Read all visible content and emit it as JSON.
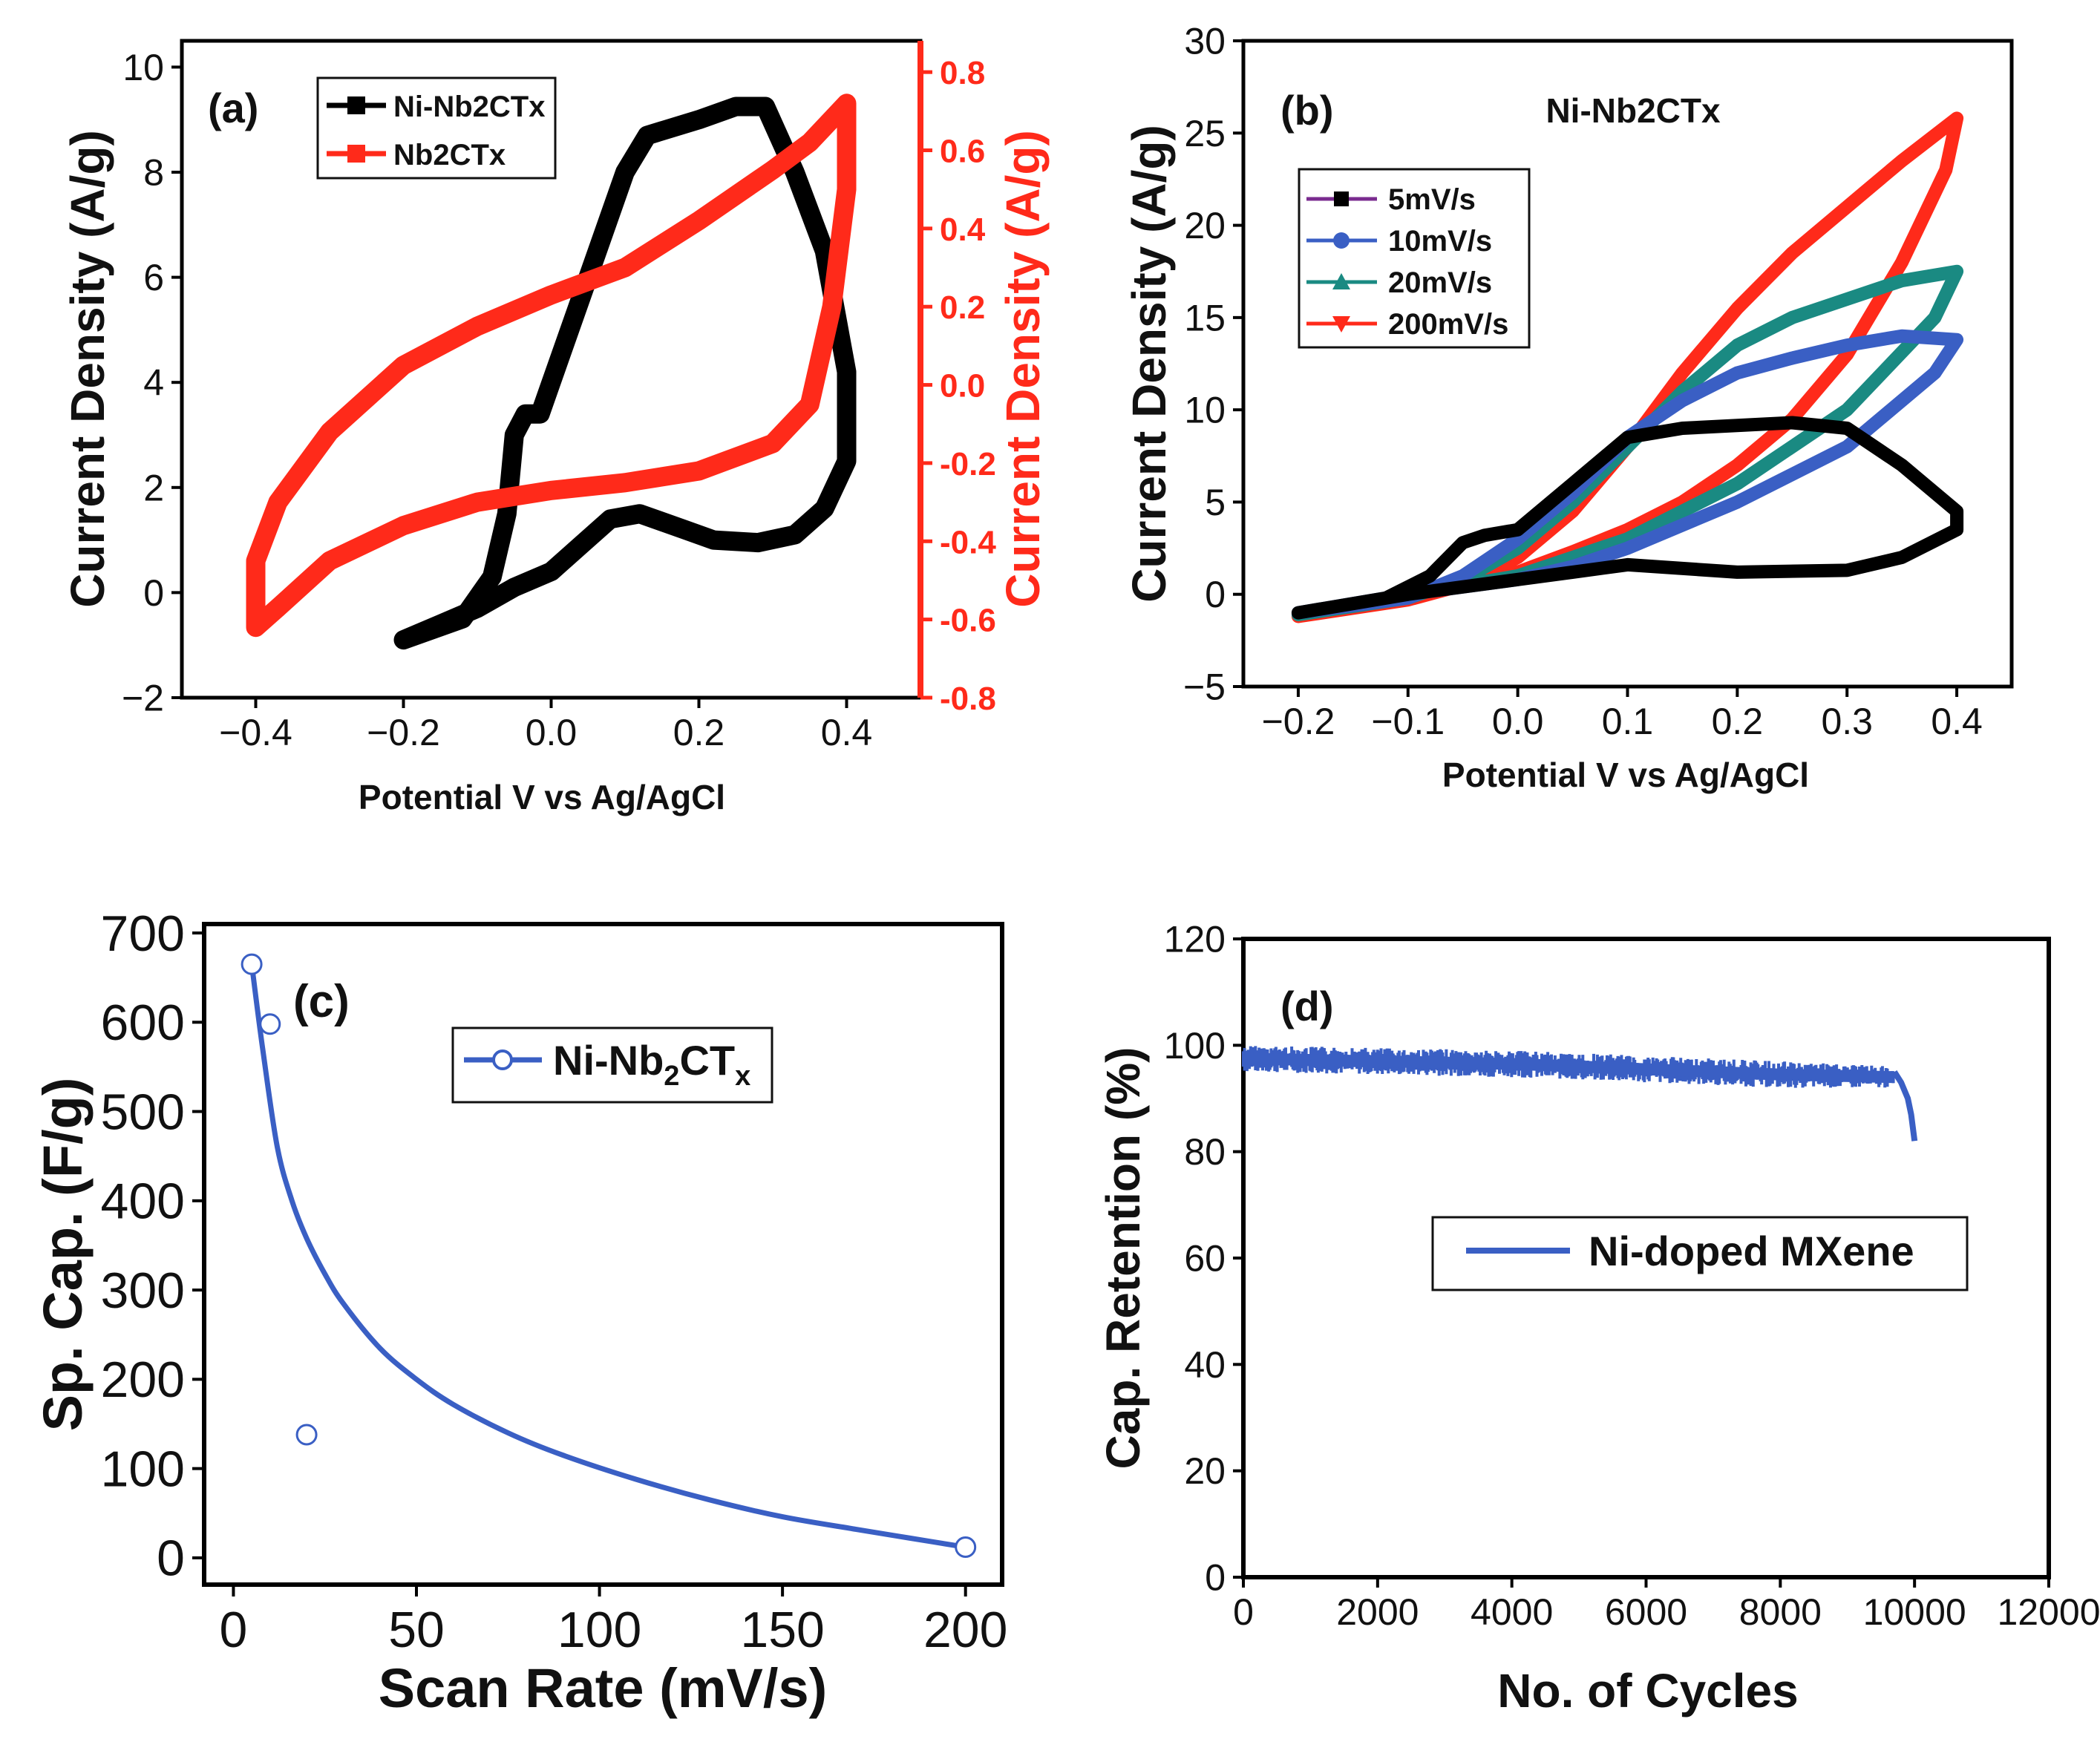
{
  "chart_data": [
    {
      "panel": "(a)",
      "type": "line",
      "xlabel": "Potential V vs Ag/AgCl",
      "ylabel": "Current Density (A/g)",
      "ylabel_right": "Current Density (A/g)",
      "xlim": [
        -0.5,
        0.5
      ],
      "ylim": [
        -2,
        10.5
      ],
      "ylim_right": [
        -0.8,
        0.88
      ],
      "xticks": [
        "−0.4",
        "−0.2",
        "0.0",
        "0.2",
        "0.4"
      ],
      "xtick_values": [
        -0.4,
        -0.2,
        0.0,
        0.2,
        0.4
      ],
      "yticks": [
        "−2",
        "0",
        "2",
        "4",
        "6",
        "8",
        "10"
      ],
      "ytick_values": [
        -2,
        0,
        2,
        4,
        6,
        8,
        10
      ],
      "yticks_right": [
        "-0.8",
        "-0.6",
        "-0.4",
        "-0.2",
        "0.0",
        "0.2",
        "0.4",
        "0.6",
        "0.8"
      ],
      "ytick_values_right": [
        -0.8,
        -0.6,
        -0.4,
        -0.2,
        0.0,
        0.2,
        0.4,
        0.6,
        0.8
      ],
      "legend": [
        "Ni-Nb2CTx",
        "Nb2CTx"
      ],
      "series": [
        {
          "name": "Ni-Nb2CTx",
          "axis": "left",
          "color": "#000000",
          "points": [
            [
              -0.2,
              -0.9
            ],
            [
              -0.12,
              -0.5
            ],
            [
              -0.08,
              0.3
            ],
            [
              -0.06,
              1.5
            ],
            [
              -0.05,
              3.0
            ],
            [
              -0.035,
              3.4
            ],
            [
              -0.015,
              3.4
            ],
            [
              0.0,
              4.0
            ],
            [
              0.05,
              6.0
            ],
            [
              0.1,
              8.0
            ],
            [
              0.13,
              8.7
            ],
            [
              0.2,
              9.0
            ],
            [
              0.25,
              9.25
            ],
            [
              0.29,
              9.25
            ],
            [
              0.33,
              8.0
            ],
            [
              0.37,
              6.5
            ],
            [
              0.4,
              4.2
            ],
            [
              0.4,
              2.5
            ],
            [
              0.37,
              1.6
            ],
            [
              0.33,
              1.1
            ],
            [
              0.28,
              0.95
            ],
            [
              0.22,
              1.0
            ],
            [
              0.18,
              1.2
            ],
            [
              0.12,
              1.5
            ],
            [
              0.08,
              1.4
            ],
            [
              0.04,
              0.9
            ],
            [
              0.0,
              0.4
            ],
            [
              -0.05,
              0.1
            ],
            [
              -0.1,
              -0.3
            ],
            [
              -0.15,
              -0.6
            ],
            [
              -0.2,
              -0.9
            ]
          ]
        },
        {
          "name": "Nb2CTx",
          "axis": "right",
          "color": "#ff2a1a",
          "points": [
            [
              -0.4,
              -0.62
            ],
            [
              -0.4,
              -0.45
            ],
            [
              -0.37,
              -0.3
            ],
            [
              -0.3,
              -0.12
            ],
            [
              -0.2,
              0.05
            ],
            [
              -0.1,
              0.15
            ],
            [
              0.0,
              0.23
            ],
            [
              0.1,
              0.3
            ],
            [
              0.2,
              0.42
            ],
            [
              0.3,
              0.55
            ],
            [
              0.35,
              0.62
            ],
            [
              0.4,
              0.72
            ],
            [
              0.4,
              0.6
            ],
            [
              0.4,
              0.5
            ],
            [
              0.38,
              0.2
            ],
            [
              0.35,
              -0.05
            ],
            [
              0.3,
              -0.15
            ],
            [
              0.2,
              -0.22
            ],
            [
              0.1,
              -0.25
            ],
            [
              0.0,
              -0.27
            ],
            [
              -0.1,
              -0.3
            ],
            [
              -0.2,
              -0.36
            ],
            [
              -0.3,
              -0.45
            ],
            [
              -0.37,
              -0.57
            ],
            [
              -0.4,
              -0.62
            ]
          ]
        }
      ]
    },
    {
      "panel": "(b)",
      "type": "line",
      "title": "Ni-Nb2CTx",
      "xlabel": "Potential V vs Ag/AgCl",
      "ylabel": "Current Density (A/g)",
      "xlim": [
        -0.25,
        0.45
      ],
      "ylim": [
        -5,
        30
      ],
      "xticks": [
        "−0.2",
        "−0.1",
        "0.0",
        "0.1",
        "0.2",
        "0.3",
        "0.4"
      ],
      "xtick_values": [
        -0.2,
        -0.1,
        0.0,
        0.1,
        0.2,
        0.3,
        0.4
      ],
      "yticks": [
        "−5",
        "0",
        "5",
        "10",
        "15",
        "20",
        "25",
        "30"
      ],
      "ytick_values": [
        -5,
        0,
        5,
        10,
        15,
        20,
        25,
        30
      ],
      "legend": [
        "5mV/s",
        "10mV/s",
        "20mV/s",
        "200mV/s"
      ],
      "series": [
        {
          "name": "5mV/s",
          "color": "#000000",
          "points": [
            [
              -0.2,
              -1.0
            ],
            [
              -0.12,
              -0.2
            ],
            [
              -0.08,
              1.0
            ],
            [
              -0.05,
              2.8
            ],
            [
              -0.03,
              3.2
            ],
            [
              0.0,
              3.5
            ],
            [
              0.05,
              6.0
            ],
            [
              0.1,
              8.5
            ],
            [
              0.15,
              9.0
            ],
            [
              0.25,
              9.3
            ],
            [
              0.3,
              9.0
            ],
            [
              0.35,
              7.0
            ],
            [
              0.4,
              4.5
            ],
            [
              0.4,
              3.5
            ],
            [
              0.35,
              2.0
            ],
            [
              0.3,
              1.3
            ],
            [
              0.2,
              1.2
            ],
            [
              0.1,
              1.6
            ],
            [
              0.05,
              1.2
            ],
            [
              0.0,
              0.8
            ],
            [
              -0.1,
              0.0
            ],
            [
              -0.2,
              -1.0
            ]
          ]
        },
        {
          "name": "10mV/s",
          "color": "#3a5fc4",
          "points": [
            [
              -0.2,
              -1.0
            ],
            [
              -0.1,
              -0.2
            ],
            [
              -0.05,
              1.0
            ],
            [
              0.0,
              3.0
            ],
            [
              0.05,
              5.5
            ],
            [
              0.1,
              8.5
            ],
            [
              0.15,
              10.5
            ],
            [
              0.2,
              12.0
            ],
            [
              0.25,
              12.8
            ],
            [
              0.3,
              13.5
            ],
            [
              0.35,
              14.0
            ],
            [
              0.4,
              13.8
            ],
            [
              0.38,
              12.0
            ],
            [
              0.3,
              8.0
            ],
            [
              0.2,
              5.0
            ],
            [
              0.1,
              2.5
            ],
            [
              0.05,
              1.5
            ],
            [
              0.0,
              0.8
            ],
            [
              -0.1,
              0.0
            ],
            [
              -0.2,
              -1.0
            ]
          ]
        },
        {
          "name": "20mV/s",
          "color": "#1a8a82",
          "points": [
            [
              -0.2,
              -1.1
            ],
            [
              -0.1,
              -0.2
            ],
            [
              -0.05,
              0.8
            ],
            [
              0.0,
              2.5
            ],
            [
              0.05,
              5.0
            ],
            [
              0.1,
              8.0
            ],
            [
              0.15,
              11.0
            ],
            [
              0.2,
              13.5
            ],
            [
              0.25,
              15.0
            ],
            [
              0.3,
              16.0
            ],
            [
              0.35,
              17.0
            ],
            [
              0.4,
              17.5
            ],
            [
              0.38,
              15.0
            ],
            [
              0.3,
              10.0
            ],
            [
              0.2,
              6.0
            ],
            [
              0.1,
              3.0
            ],
            [
              0.05,
              2.0
            ],
            [
              0.0,
              1.0
            ],
            [
              -0.1,
              0.0
            ],
            [
              -0.2,
              -1.1
            ]
          ]
        },
        {
          "name": "200mV/s",
          "color": "#ff2a1a",
          "points": [
            [
              -0.2,
              -1.2
            ],
            [
              -0.1,
              -0.3
            ],
            [
              -0.05,
              0.5
            ],
            [
              0.0,
              2.0
            ],
            [
              0.05,
              4.5
            ],
            [
              0.1,
              8.0
            ],
            [
              0.15,
              12.0
            ],
            [
              0.2,
              15.5
            ],
            [
              0.25,
              18.5
            ],
            [
              0.3,
              21.0
            ],
            [
              0.35,
              23.5
            ],
            [
              0.4,
              25.8
            ],
            [
              0.39,
              23.0
            ],
            [
              0.35,
              18.0
            ],
            [
              0.3,
              13.0
            ],
            [
              0.25,
              9.5
            ],
            [
              0.2,
              7.0
            ],
            [
              0.15,
              5.0
            ],
            [
              0.1,
              3.5
            ],
            [
              0.05,
              2.3
            ],
            [
              0.0,
              1.2
            ],
            [
              -0.1,
              0.0
            ],
            [
              -0.2,
              -1.2
            ]
          ]
        }
      ]
    },
    {
      "panel": "(c)",
      "type": "scatter",
      "xlabel": "Scan Rate (mV/s)",
      "ylabel": "Sp. Cap. (F/g)",
      "xlim": [
        -8,
        210
      ],
      "ylim": [
        -30,
        710
      ],
      "xticks": [
        "0",
        "50",
        "100",
        "150",
        "200"
      ],
      "xtick_values": [
        0,
        50,
        100,
        150,
        200
      ],
      "yticks": [
        "0",
        "100",
        "200",
        "300",
        "400",
        "500",
        "600",
        "700"
      ],
      "ytick_values": [
        0,
        100,
        200,
        300,
        400,
        500,
        600,
        700
      ],
      "legend_main": "Ni-Nb",
      "legend_sub1": "2",
      "legend_mid": "CT",
      "legend_sub2": "x",
      "color": "#3a5fc4",
      "points": [
        [
          5,
          665
        ],
        [
          10,
          598
        ],
        [
          20,
          138
        ],
        [
          200,
          12
        ]
      ],
      "fit_curve": [
        [
          5,
          665
        ],
        [
          8,
          570
        ],
        [
          12,
          460
        ],
        [
          16,
          400
        ],
        [
          20,
          358
        ],
        [
          25,
          318
        ],
        [
          30,
          285
        ],
        [
          40,
          235
        ],
        [
          50,
          200
        ],
        [
          60,
          172
        ],
        [
          75,
          140
        ],
        [
          90,
          115
        ],
        [
          110,
          88
        ],
        [
          130,
          65
        ],
        [
          150,
          46
        ],
        [
          170,
          32
        ],
        [
          185,
          22
        ],
        [
          200,
          12
        ]
      ]
    },
    {
      "panel": "(d)",
      "type": "line",
      "xlabel": "No. of Cycles",
      "ylabel": "Cap. Retention (%)",
      "xlim": [
        0,
        12000
      ],
      "ylim": [
        0,
        120
      ],
      "xticks": [
        "0",
        "2000",
        "4000",
        "6000",
        "8000",
        "10000",
        "12000"
      ],
      "xtick_values": [
        0,
        2000,
        4000,
        6000,
        8000,
        10000,
        12000
      ],
      "yticks": [
        "0",
        "20",
        "40",
        "60",
        "80",
        "100",
        "120"
      ],
      "ytick_values": [
        0,
        20,
        40,
        60,
        80,
        100,
        120
      ],
      "legend": [
        "Ni-doped MXene"
      ],
      "color": "#3a5fc4",
      "retention_band": [
        [
          0,
          95,
          100
        ],
        [
          4000,
          94,
          99
        ],
        [
          6000,
          93,
          98
        ],
        [
          8000,
          92,
          97
        ],
        [
          9700,
          92,
          96
        ]
      ],
      "tail": [
        [
          9700,
          95
        ],
        [
          9800,
          93
        ],
        [
          9900,
          90
        ],
        [
          9950,
          87
        ],
        [
          10000,
          82
        ]
      ]
    }
  ]
}
